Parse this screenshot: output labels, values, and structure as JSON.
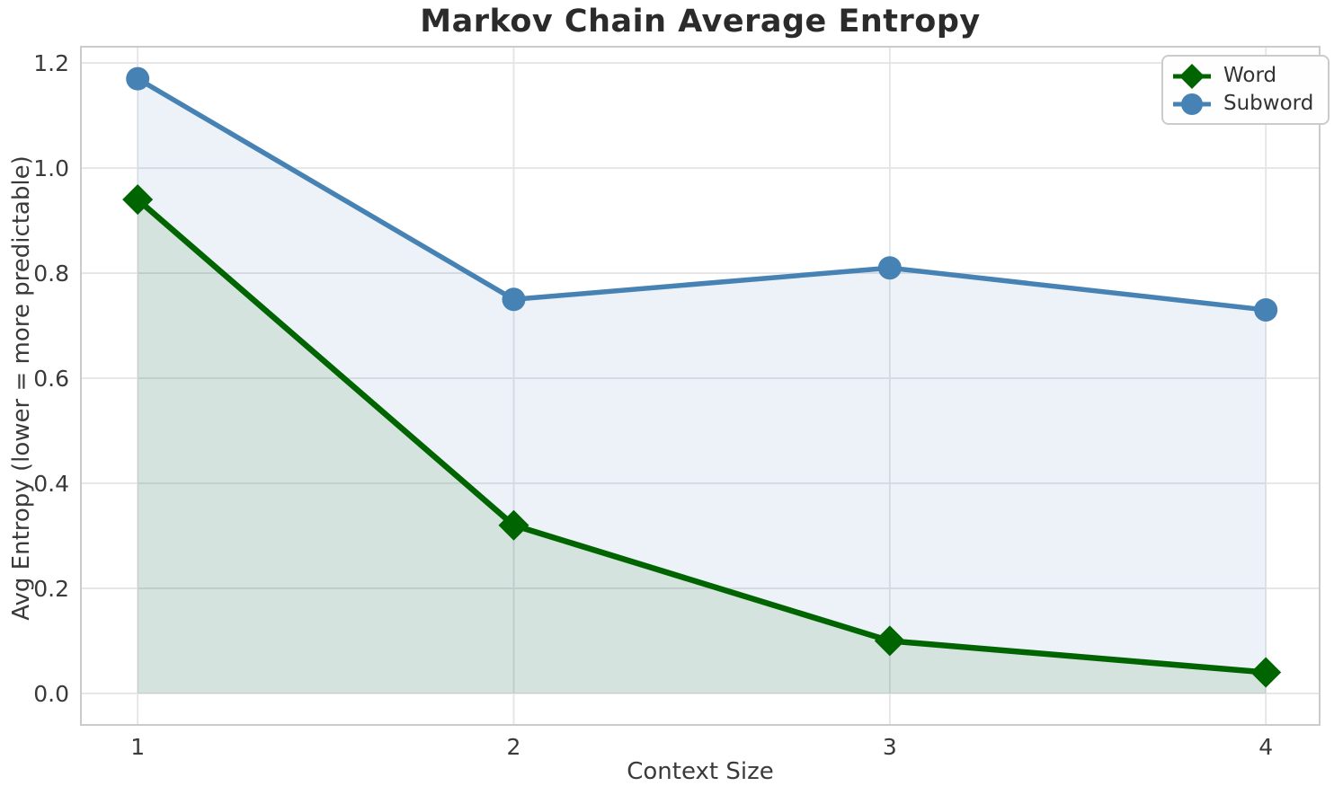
{
  "chart_data": {
    "type": "line",
    "title": "Markov Chain Average Entropy",
    "xlabel": "Context Size",
    "ylabel": "Avg Entropy (lower = more predictable)",
    "x": [
      1,
      2,
      3,
      4
    ],
    "series": [
      {
        "name": "Word",
        "color": "#006400",
        "marker": "diamond",
        "values": [
          0.94,
          0.32,
          0.1,
          0.04
        ]
      },
      {
        "name": "Subword",
        "color": "#4682B4",
        "marker": "circle",
        "values": [
          1.17,
          0.75,
          0.81,
          0.73
        ]
      }
    ],
    "x_tick_values": [
      1,
      2,
      3,
      4
    ],
    "x_tick_labels": [
      "1",
      "2",
      "3",
      "4"
    ],
    "y_tick_values": [
      0.0,
      0.2,
      0.4,
      0.6,
      0.8,
      1.0,
      1.2
    ],
    "y_tick_labels": [
      "0.0",
      "0.2",
      "0.4",
      "0.6",
      "0.8",
      "1.0",
      "1.2"
    ],
    "xlim": [
      0.849,
      4.143
    ],
    "ylim": [
      -0.06,
      1.231
    ],
    "grid": true,
    "legend_position": "upper right",
    "area_fill": true,
    "fill_alpha": 0.1,
    "fill_baseline": 0
  },
  "style": {
    "grid_color": "#e4e4e7",
    "spine_color": "#cbcbcb",
    "tick_color": "#3a3a3a",
    "title_color": "#2b2b2b"
  }
}
